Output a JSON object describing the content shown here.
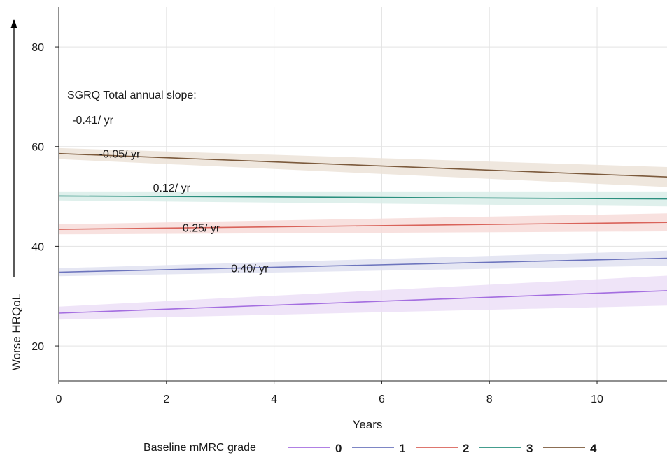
{
  "chart_data": {
    "type": "line",
    "title": "",
    "xlabel": "Years",
    "ylabel": "Worse HRQoL",
    "xlim": [
      0,
      11.3
    ],
    "ylim": [
      13,
      88
    ],
    "xticks": [
      0,
      2,
      4,
      6,
      8,
      10
    ],
    "yticks": [
      20,
      40,
      60,
      80
    ],
    "grid": true,
    "legend": {
      "title": "Baseline mMRC grade",
      "placement": "bottom"
    },
    "annotation_title": "SGRQ Total annual slope:",
    "series": [
      {
        "name": "0",
        "color": "#a46ee0",
        "band_color": "#ecdff7",
        "x": [
          0,
          11.3
        ],
        "y": [
          26.6,
          31.1
        ],
        "ci_lower": [
          25.3,
          28.1
        ],
        "ci_upper": [
          27.9,
          34.1
        ],
        "slope_label": "0.40/ yr",
        "label_at": [
          3.2,
          34.8
        ]
      },
      {
        "name": "1",
        "color": "#6c74bd",
        "band_color": "#e0e2f1",
        "x": [
          0,
          11.3
        ],
        "y": [
          34.8,
          37.6
        ],
        "ci_lower": [
          34.0,
          36.1
        ],
        "ci_upper": [
          35.6,
          39.1
        ],
        "slope_label": "0.25/ yr",
        "label_at": [
          2.3,
          42.9
        ]
      },
      {
        "name": "2",
        "color": "#d9635a",
        "band_color": "#f7dcd9",
        "x": [
          0,
          11.3
        ],
        "y": [
          43.4,
          44.8
        ],
        "ci_lower": [
          42.4,
          43.0
        ],
        "ci_upper": [
          44.4,
          46.6
        ],
        "slope_label": "0.12/ yr",
        "label_at": [
          1.75,
          51.0
        ]
      },
      {
        "name": "3",
        "color": "#2a8f7e",
        "band_color": "#d9ede9",
        "x": [
          0,
          11.3
        ],
        "y": [
          50.1,
          49.5
        ],
        "ci_lower": [
          49.2,
          48.0
        ],
        "ci_upper": [
          51.0,
          51.0
        ],
        "slope_label": "-0.05/ yr",
        "label_at": [
          0.75,
          57.8
        ]
      },
      {
        "name": "4",
        "color": "#7c5a3c",
        "band_color": "#ece3d8",
        "x": [
          0,
          11.3
        ],
        "y": [
          58.6,
          53.9
        ],
        "ci_lower": [
          57.5,
          51.9
        ],
        "ci_upper": [
          59.7,
          55.9
        ],
        "slope_label": "-0.41/ yr",
        "label_at": [
          0.25,
          64.6
        ]
      }
    ]
  }
}
